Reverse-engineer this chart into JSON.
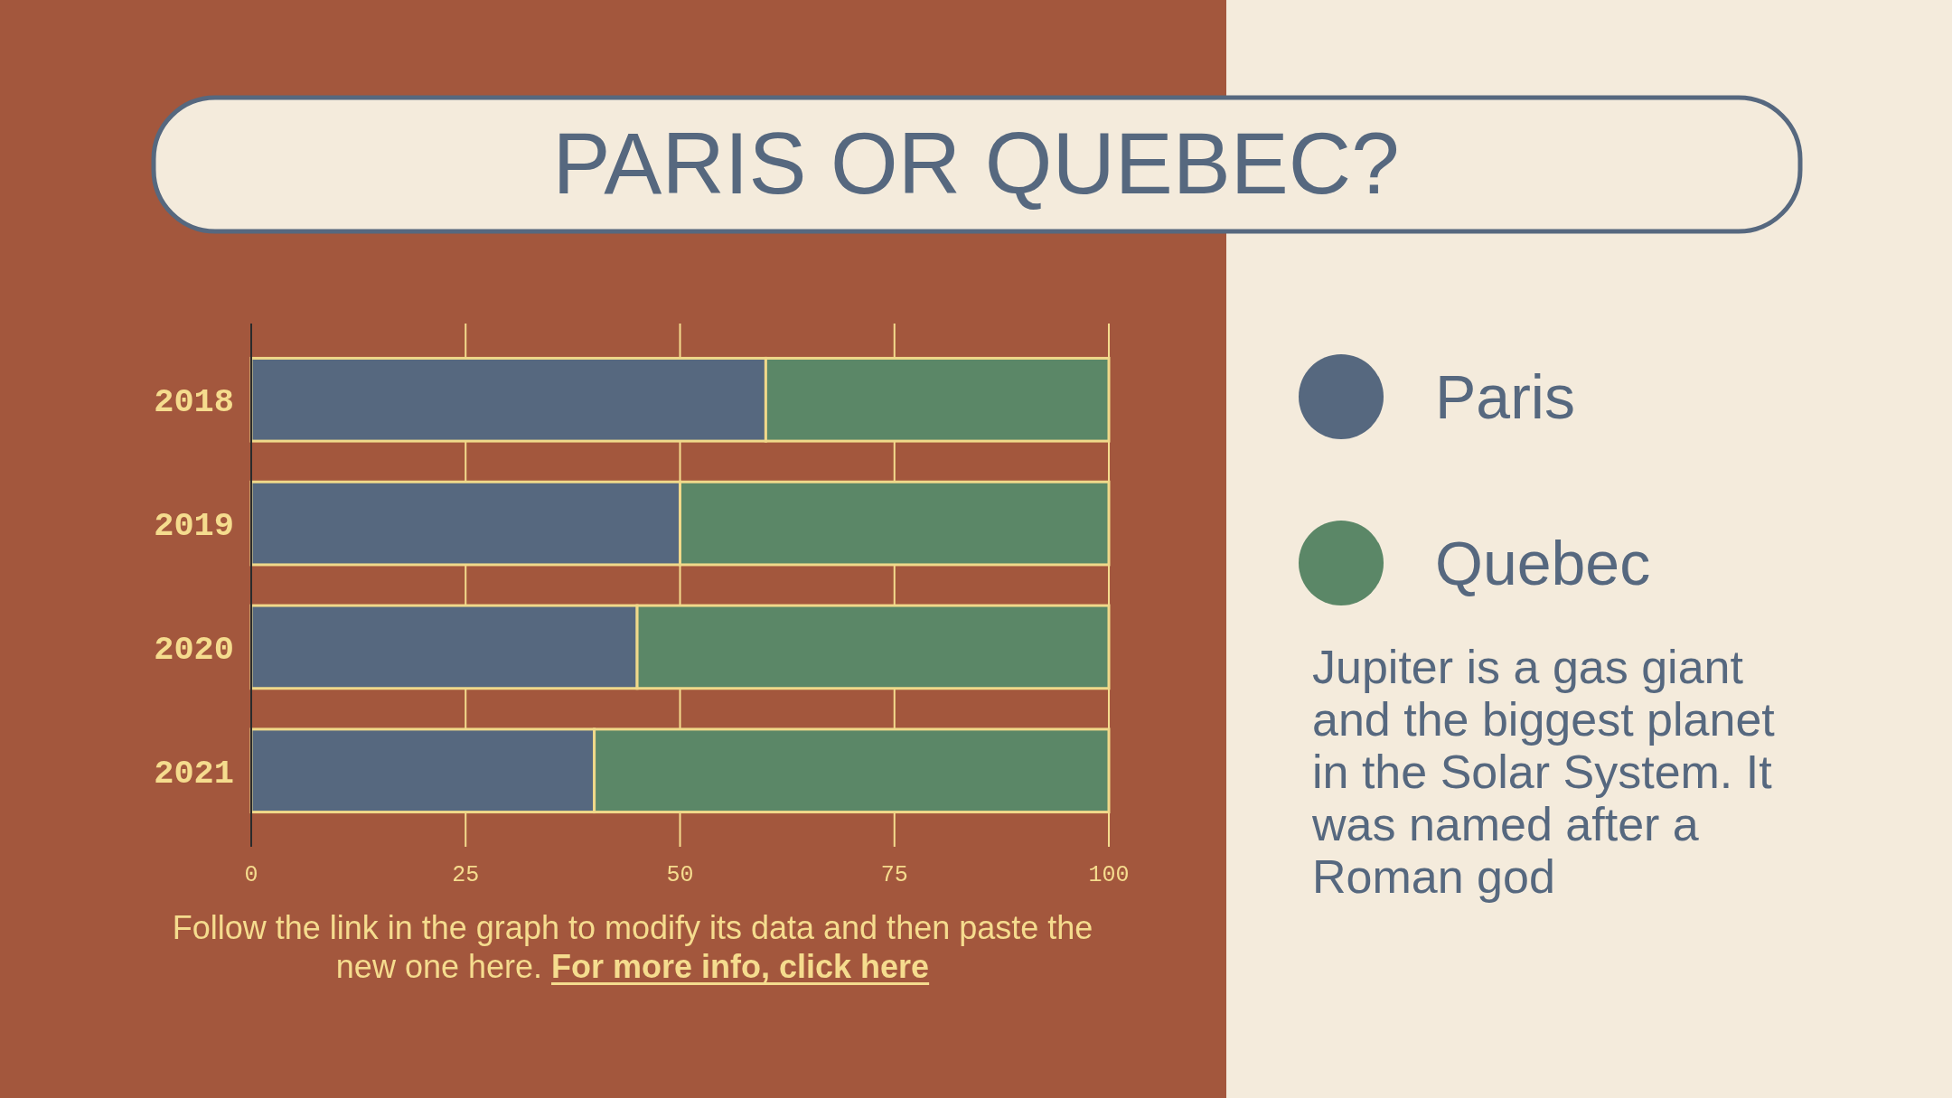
{
  "chart_data": {
    "type": "bar",
    "orientation": "horizontal",
    "stacked": true,
    "title": "PARIS OR QUEBEC?",
    "categories": [
      "2018",
      "2019",
      "2020",
      "2021"
    ],
    "series": [
      {
        "name": "Paris",
        "color": "#56687f",
        "values": [
          60,
          50,
          45,
          40
        ]
      },
      {
        "name": "Quebec",
        "color": "#5b8767",
        "values": [
          40,
          50,
          55,
          60
        ]
      }
    ],
    "xlim": [
      0,
      100
    ],
    "xticks": [
      0,
      25,
      50,
      75,
      100
    ],
    "grid": "x",
    "legend": "right",
    "annotations": [
      "Jupiter is a gas giant and the biggest planet in the Solar System. It was named after a Roman god",
      "Follow the link in the graph to modify its data and then paste the new one here.",
      "For more info, click here"
    ]
  }
}
